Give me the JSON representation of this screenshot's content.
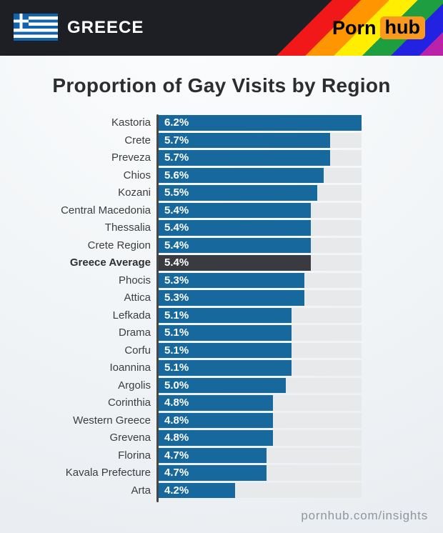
{
  "header": {
    "country": "GREECE",
    "brand": {
      "porn": "Porn",
      "hub": "hub"
    },
    "colors": {
      "banner_bg": "#1e1f24",
      "hub_box": "#f9991d",
      "flag_blue": "#1063ad",
      "pride_stripes": [
        "#f01818",
        "#ff9500",
        "#ffee00",
        "#1e9e3e",
        "#2222e2",
        "#bb22aa"
      ]
    }
  },
  "title": "Proportion of Gay Visits by Region",
  "chart_data": {
    "type": "bar",
    "orientation": "horizontal",
    "title": "Proportion of Gay Visits by Region",
    "categories": [
      "Kastoria",
      "Crete",
      "Preveza",
      "Chios",
      "Kozani",
      "Central Macedonia",
      "Thessalia",
      "Crete Region",
      "Greece Average",
      "Phocis",
      "Attica",
      "Lefkada",
      "Drama",
      "Corfu",
      "Ioannina",
      "Argolis",
      "Corinthia",
      "Western Greece",
      "Grevena",
      "Florina",
      "Kavala Prefecture",
      "Arta"
    ],
    "values": [
      6.2,
      5.7,
      5.7,
      5.6,
      5.5,
      5.4,
      5.4,
      5.4,
      5.4,
      5.3,
      5.3,
      5.1,
      5.1,
      5.1,
      5.1,
      5.0,
      4.8,
      4.8,
      4.8,
      4.7,
      4.7,
      4.2
    ],
    "value_labels": [
      "6.2%",
      "5.7%",
      "5.7%",
      "5.6%",
      "5.5%",
      "5.4%",
      "5.4%",
      "5.4%",
      "5.4%",
      "5.3%",
      "5.3%",
      "5.1%",
      "5.1%",
      "5.1%",
      "5.1%",
      "5.0%",
      "4.8%",
      "4.8%",
      "4.8%",
      "4.7%",
      "4.7%",
      "4.2%"
    ],
    "highlight_category": "Greece Average",
    "xlim": [
      3.0,
      6.2
    ],
    "grid": false,
    "legend": false,
    "bar_color": "#16689d",
    "highlight_color": "#3a3b40",
    "track_color": "#e7e9ea"
  },
  "footer": {
    "site": "pornhub.com/insights"
  }
}
